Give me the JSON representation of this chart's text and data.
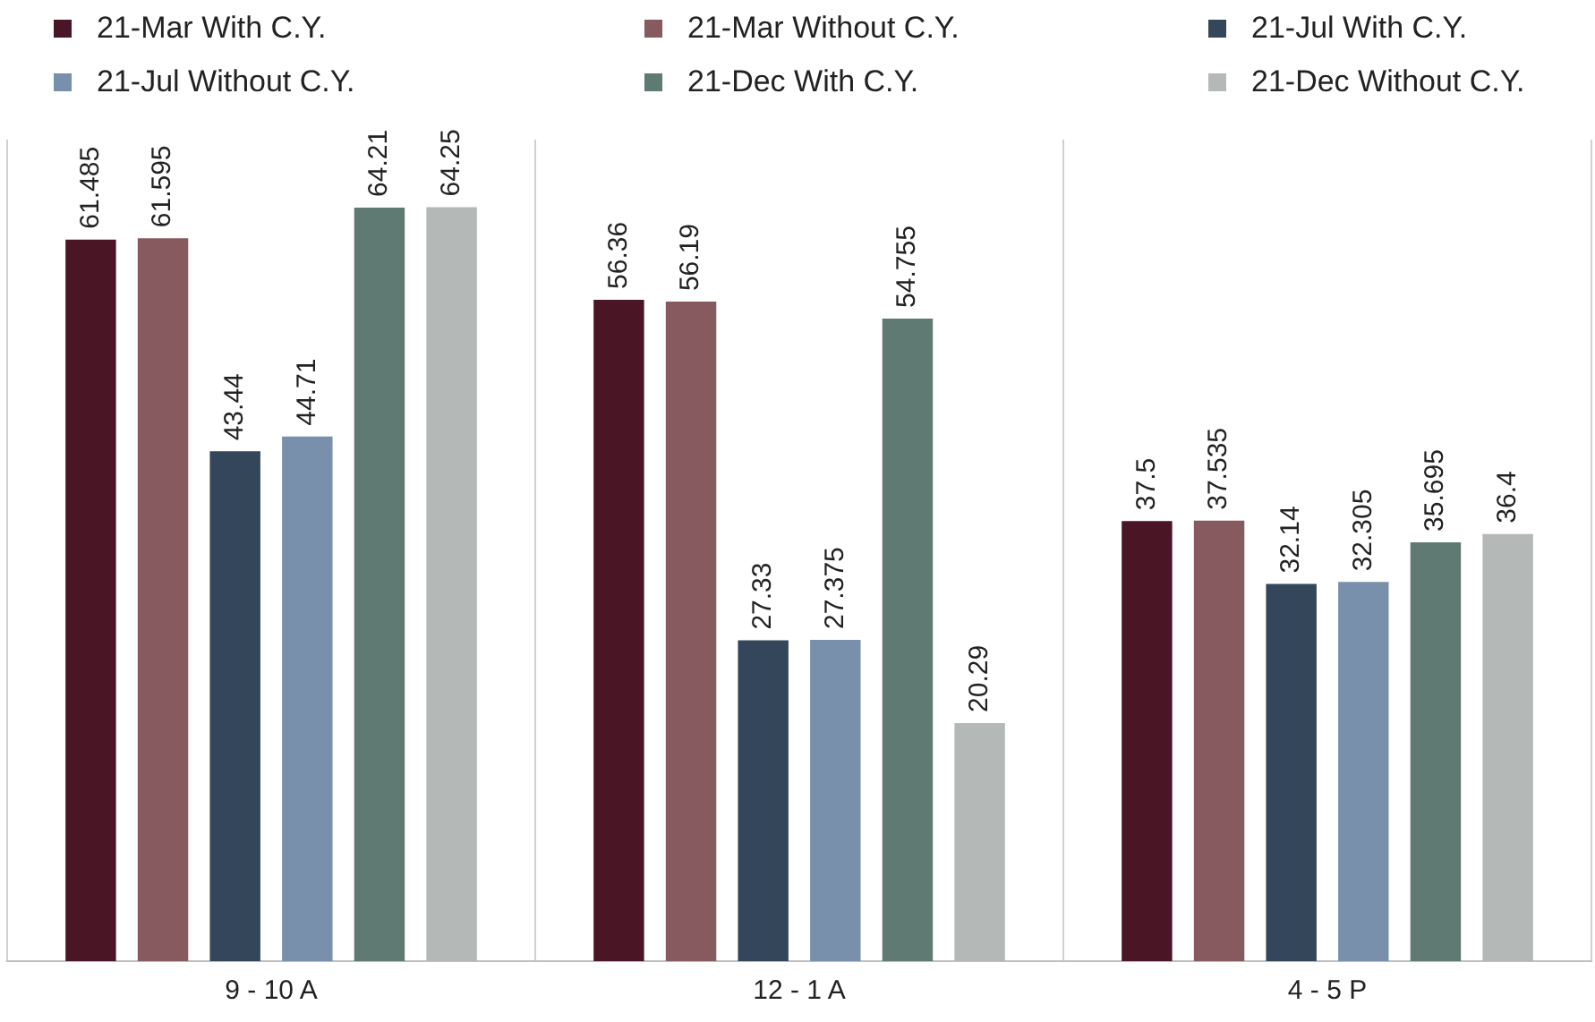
{
  "chart_data": {
    "type": "bar",
    "categories": [
      "9 - 10 A",
      "12 - 1 A",
      "4 - 5 P"
    ],
    "series": [
      {
        "name": "21-Mar With C.Y.",
        "color": "#4a1525",
        "values": [
          61.485,
          56.36,
          37.5
        ]
      },
      {
        "name": "21-Mar Without C.Y.",
        "color": "#865a5f",
        "values": [
          61.595,
          56.19,
          37.535
        ]
      },
      {
        "name": "21-Jul With C.Y.",
        "color": "#33465a",
        "values": [
          43.44,
          27.33,
          32.14
        ]
      },
      {
        "name": "21-Jul Without C.Y.",
        "color": "#7990ad",
        "values": [
          44.71,
          27.375,
          32.305
        ]
      },
      {
        "name": "21-Dec With C.Y.",
        "color": "#5f7a73",
        "values": [
          64.21,
          54.755,
          35.695
        ]
      },
      {
        "name": "21-Dec Without C.Y.",
        "color": "#b4b9b7",
        "values": [
          64.25,
          20.29,
          36.4
        ]
      }
    ],
    "data_labels": true,
    "grid": "x",
    "legend": "top"
  }
}
